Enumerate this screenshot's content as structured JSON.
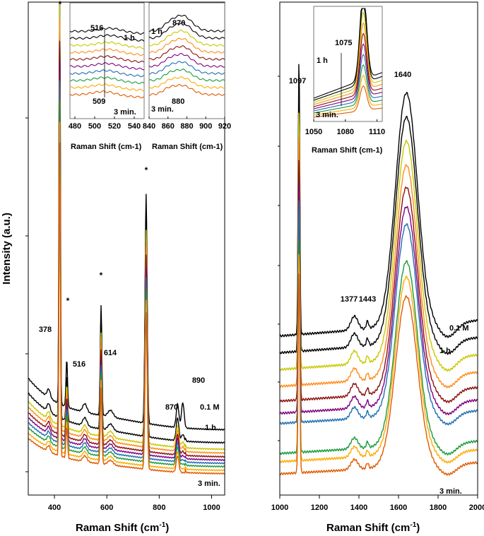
{
  "chart_data": [
    {
      "type": "line",
      "panel": "left",
      "xlabel": "Raman Shift (cm",
      "xlabel_sup": "-1",
      "xlabel_tail": ")",
      "ylabel": "Intensity (a.u.)",
      "xlim": [
        300,
        1050
      ],
      "xticks": [
        "400",
        "600",
        "800",
        "1000"
      ],
      "xtick_values": [
        400,
        600,
        800,
        1000
      ],
      "yrange_note": "arbitrary units, relative",
      "peaks": [
        {
          "x": 378,
          "label": "378"
        },
        {
          "x": 420,
          "label": "*"
        },
        {
          "x": 447,
          "label": "*"
        },
        {
          "x": 516,
          "label": "516"
        },
        {
          "x": 578,
          "label": "*"
        },
        {
          "x": 614,
          "label": "614"
        },
        {
          "x": 750,
          "label": "*"
        },
        {
          "x": 870,
          "label": "870"
        },
        {
          "x": 890,
          "label": "890"
        }
      ],
      "series_labels": {
        "top": "0.1 M",
        "second": "1 h",
        "bottom": "3 min."
      },
      "series": [
        {
          "name": "0.1 M",
          "color": "#000000",
          "offset": 100
        },
        {
          "name": "1 h",
          "color": "#000000",
          "offset": 72
        },
        {
          "name": "s3",
          "color": "#c8c800",
          "offset": 58
        },
        {
          "name": "s4",
          "color": "#ff8c1a",
          "offset": 50
        },
        {
          "name": "s5",
          "color": "#8b1010",
          "offset": 42
        },
        {
          "name": "s6",
          "color": "#800080",
          "offset": 35
        },
        {
          "name": "s7",
          "color": "#1f6fb4",
          "offset": 28
        },
        {
          "name": "s8",
          "color": "#1a9a3a",
          "offset": 21
        },
        {
          "name": "s9",
          "color": "#ffaa00",
          "offset": 13
        },
        {
          "name": "3 min.",
          "color": "#e05a00",
          "offset": 6
        }
      ],
      "insets": [
        {
          "xlim": [
            475,
            550
          ],
          "xticks": [
            "480",
            "500",
            "520",
            "540"
          ],
          "xtick_values": [
            480,
            500,
            520,
            540
          ],
          "xlabel": "Raman Shift (cm-1)",
          "annotations": {
            "top": "516",
            "bottom": "509",
            "series_top": "1 h",
            "series_bottom": "3 min."
          }
        },
        {
          "xlim": [
            840,
            920
          ],
          "xticks": [
            "840",
            "860",
            "880",
            "900",
            "920"
          ],
          "xtick_values": [
            840,
            860,
            880,
            900,
            920
          ],
          "xlabel": "Raman Shift (cm-1)",
          "annotations": {
            "top": "870",
            "bottom": "880",
            "series_top": "1 h",
            "series_bottom": "3 min."
          }
        }
      ]
    },
    {
      "type": "line",
      "panel": "right",
      "xlabel": "Raman Shift (cm",
      "xlabel_sup": "-1",
      "xlabel_tail": ")",
      "xlim": [
        1000,
        2000
      ],
      "xticks": [
        "1000",
        "1200",
        "1400",
        "1600",
        "1800",
        "2000"
      ],
      "xtick_values": [
        1000,
        1200,
        1400,
        1600,
        1800,
        2000
      ],
      "peaks": [
        {
          "x": 1097,
          "label": "1097"
        },
        {
          "x": 1377,
          "label": "1377"
        },
        {
          "x": 1443,
          "label": "1443"
        },
        {
          "x": 1640,
          "label": "1640"
        }
      ],
      "series_labels": {
        "top": "0.1 M",
        "second": "1 h",
        "bottom": "3 min."
      },
      "inset": {
        "xlim": [
          1050,
          1115
        ],
        "xticks": [
          "1050",
          "1080",
          "1110"
        ],
        "xtick_values": [
          1050,
          1080,
          1110
        ],
        "xlabel": "Raman Shift (cm-1)",
        "annotations": {
          "peak": "1075",
          "series_top": "1 h",
          "series_bottom": "3 min."
        }
      }
    }
  ]
}
